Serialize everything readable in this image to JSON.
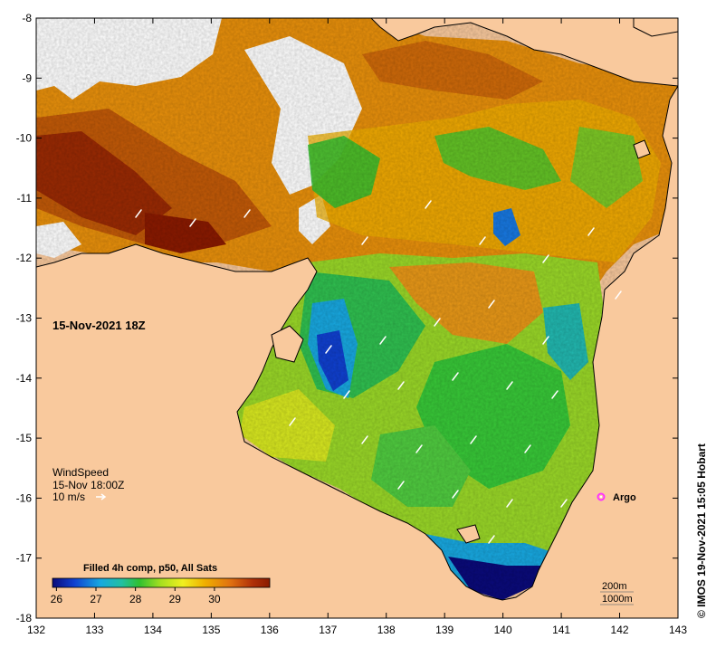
{
  "map": {
    "timestamp_label": "15-Nov-2021 18Z",
    "credit": "© IMOS 19-Nov-2021 15:05 Hobart",
    "argo_label": "Argo",
    "depth_contours": [
      "200m",
      "1000m"
    ],
    "colors": {
      "land": "#f9c99d",
      "no_data": "#ffffff",
      "wind_arrow": "#ffffff",
      "argo_marker": "#ff33ff"
    }
  },
  "wind": {
    "title": "WindSpeed",
    "time": "15-Nov 18:00Z",
    "scale": "10 m/s"
  },
  "axes": {
    "x_ticks": [
      "132",
      "133",
      "134",
      "135",
      "136",
      "137",
      "138",
      "139",
      "140",
      "141",
      "142",
      "143"
    ],
    "y_ticks": [
      "-8",
      "-9",
      "-10",
      "-11",
      "-12",
      "-13",
      "-14",
      "-15",
      "-16",
      "-17",
      "-18"
    ]
  },
  "colorbar": {
    "title": "Filled 4h comp, p50, All Sats",
    "ticks": [
      "26",
      "27",
      "28",
      "29",
      "30"
    ],
    "range": [
      25.9,
      31.4
    ],
    "colors": [
      "#0a0a7a",
      "#1040d0",
      "#18a8e0",
      "#22c0a0",
      "#30c030",
      "#a8e020",
      "#f0f020",
      "#f0b000",
      "#e07010",
      "#b03008",
      "#8a1a00"
    ]
  }
}
